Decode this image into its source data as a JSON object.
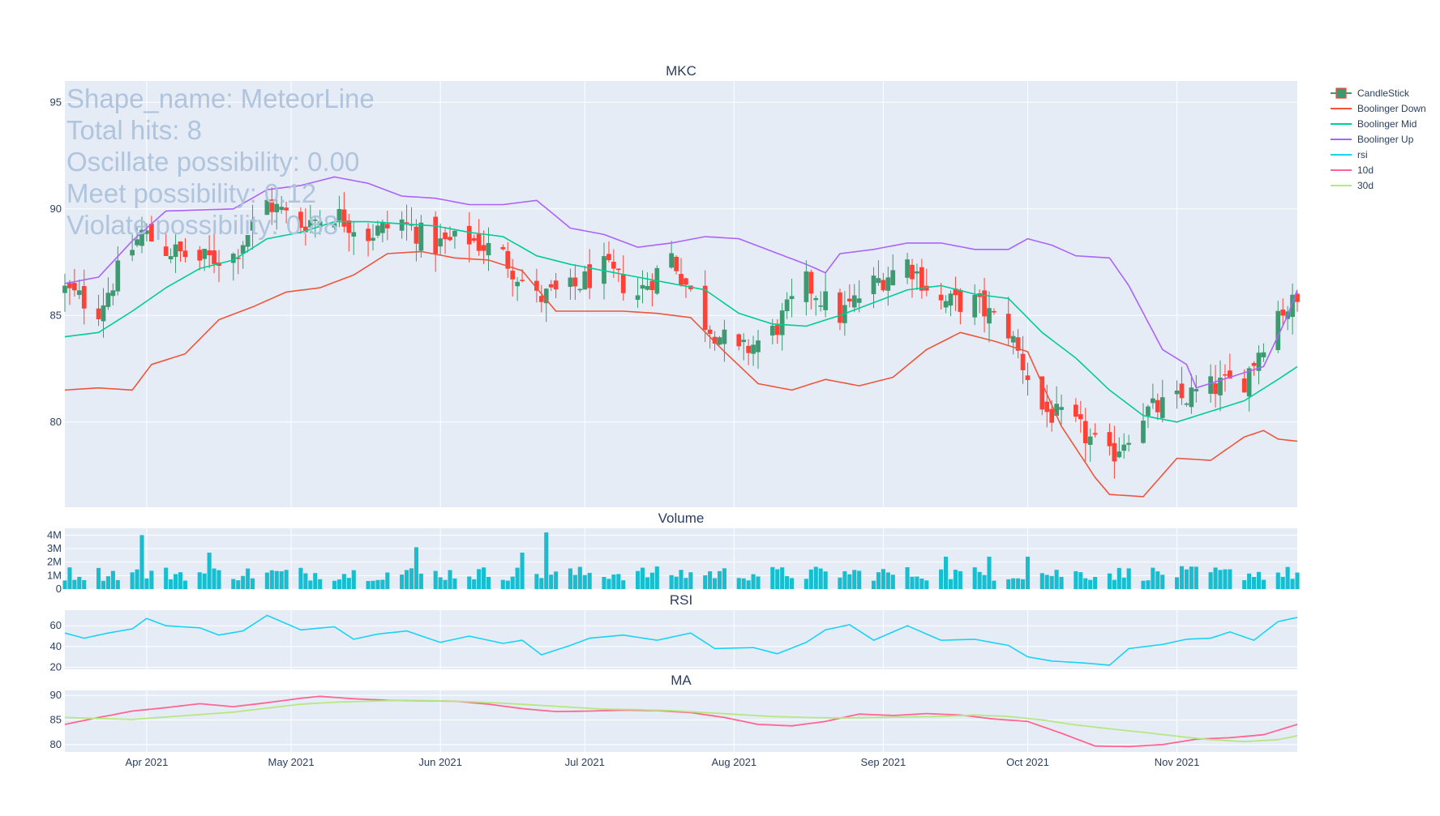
{
  "chart_data": {
    "type": "candlestick",
    "symbol": "MKC",
    "panels": {
      "price": {
        "title": "MKC",
        "ylim": [
          76,
          96
        ],
        "yticks": [
          80,
          85,
          90,
          95
        ]
      },
      "volume": {
        "title": "Volume",
        "ylim": [
          0,
          4500000
        ],
        "yticks": [
          0,
          1000000,
          2000000,
          3000000,
          4000000
        ],
        "ytick_labels": [
          "0",
          "1M",
          "2M",
          "3M",
          "4M"
        ]
      },
      "rsi": {
        "title": "RSI",
        "ylim": [
          18,
          75
        ],
        "yticks": [
          20,
          40,
          60
        ]
      },
      "ma": {
        "title": "MA",
        "ylim": [
          78.5,
          91
        ],
        "yticks": [
          80,
          85,
          90
        ]
      }
    },
    "x_range": [
      "2021-03-15",
      "2021-11-26"
    ],
    "x_ticks": [
      {
        "date": "2021-04-01",
        "label": "Apr 2021"
      },
      {
        "date": "2021-05-01",
        "label": "May 2021"
      },
      {
        "date": "2021-06-01",
        "label": "Jun 2021"
      },
      {
        "date": "2021-07-01",
        "label": "Jul 2021"
      },
      {
        "date": "2021-08-01",
        "label": "Aug 2021"
      },
      {
        "date": "2021-09-01",
        "label": "Sep 2021"
      },
      {
        "date": "2021-10-01",
        "label": "Oct 2021"
      },
      {
        "date": "2021-11-01",
        "label": "Nov 2021"
      }
    ],
    "legend": {
      "placement": "top-right",
      "items": [
        {
          "name": "CandleStick",
          "color": "#3d9970",
          "type": "candle"
        },
        {
          "name": "Boolinger Down",
          "color": "#ef553b",
          "type": "line"
        },
        {
          "name": "Boolinger Mid",
          "color": "#00cc96",
          "type": "line"
        },
        {
          "name": "Boolinger Up",
          "color": "#ab63fa",
          "type": "line"
        },
        {
          "name": "rsi",
          "color": "#19d3f3",
          "type": "line"
        },
        {
          "name": "10d",
          "color": "#ff6692",
          "type": "line"
        },
        {
          "name": "30d",
          "color": "#b6e880",
          "type": "line"
        }
      ]
    },
    "colors": {
      "increasing": "#3d9970",
      "decreasing": "#ff4136",
      "volume": "#17becf",
      "plot_bg": "#e5ecf6",
      "grid": "#ffffff"
    },
    "annotation_lines": [
      "Shape_name: MeteorLine",
      "Total hits: 8",
      "Oscillate possibility: 0.00",
      "Meet possibility: 0.12",
      "Violate possibility: 0.88"
    ],
    "close_anchors": [
      [
        "2021-03-15",
        86.2
      ],
      [
        "2021-03-22",
        85.3
      ],
      [
        "2021-03-26",
        87.0
      ],
      [
        "2021-03-31",
        88.9
      ],
      [
        "2021-04-05",
        88.1
      ],
      [
        "2021-04-12",
        87.6
      ],
      [
        "2021-04-19",
        87.8
      ],
      [
        "2021-04-26",
        90.3
      ],
      [
        "2021-05-03",
        89.3
      ],
      [
        "2021-05-10",
        89.8
      ],
      [
        "2021-05-17",
        88.8
      ],
      [
        "2021-05-24",
        89.4
      ],
      [
        "2021-05-31",
        88.3
      ],
      [
        "2021-06-07",
        88.6
      ],
      [
        "2021-06-14",
        87.8
      ],
      [
        "2021-06-21",
        85.8
      ],
      [
        "2021-06-28",
        86.2
      ],
      [
        "2021-07-05",
        87.2
      ],
      [
        "2021-07-12",
        86.0
      ],
      [
        "2021-07-19",
        87.8
      ],
      [
        "2021-07-26",
        84.7
      ],
      [
        "2021-08-02",
        83.2
      ],
      [
        "2021-08-09",
        84.2
      ],
      [
        "2021-08-16",
        86.5
      ],
      [
        "2021-08-23",
        85.0
      ],
      [
        "2021-08-30",
        86.5
      ],
      [
        "2021-09-06",
        87.5
      ],
      [
        "2021-09-13",
        85.6
      ],
      [
        "2021-09-20",
        85.6
      ],
      [
        "2021-09-27",
        84.3
      ],
      [
        "2021-10-04",
        80.6
      ],
      [
        "2021-10-11",
        79.8
      ],
      [
        "2021-10-18",
        78.3
      ],
      [
        "2021-10-25",
        80.4
      ],
      [
        "2021-11-01",
        81.0
      ],
      [
        "2021-11-08",
        81.6
      ],
      [
        "2021-11-15",
        82.0
      ],
      [
        "2021-11-22",
        85.2
      ],
      [
        "2021-11-26",
        85.6
      ]
    ],
    "bollinger_up": [
      [
        "2021-03-15",
        86.5
      ],
      [
        "2021-03-22",
        86.8
      ],
      [
        "2021-03-29",
        88.5
      ],
      [
        "2021-04-05",
        89.9
      ],
      [
        "2021-04-19",
        90.0
      ],
      [
        "2021-04-26",
        90.9
      ],
      [
        "2021-05-03",
        91.1
      ],
      [
        "2021-05-10",
        91.5
      ],
      [
        "2021-05-17",
        91.2
      ],
      [
        "2021-05-24",
        90.6
      ],
      [
        "2021-05-31",
        90.5
      ],
      [
        "2021-06-07",
        90.2
      ],
      [
        "2021-06-14",
        90.2
      ],
      [
        "2021-06-21",
        90.4
      ],
      [
        "2021-06-28",
        89.1
      ],
      [
        "2021-07-05",
        88.8
      ],
      [
        "2021-07-12",
        88.2
      ],
      [
        "2021-07-19",
        88.4
      ],
      [
        "2021-07-26",
        88.7
      ],
      [
        "2021-08-02",
        88.6
      ],
      [
        "2021-08-09",
        88.0
      ],
      [
        "2021-08-16",
        87.4
      ],
      [
        "2021-08-20",
        87.0
      ],
      [
        "2021-08-23",
        87.9
      ],
      [
        "2021-08-30",
        88.1
      ],
      [
        "2021-09-06",
        88.4
      ],
      [
        "2021-09-13",
        88.4
      ],
      [
        "2021-09-20",
        88.1
      ],
      [
        "2021-09-27",
        88.1
      ],
      [
        "2021-10-01",
        88.6
      ],
      [
        "2021-10-06",
        88.3
      ],
      [
        "2021-10-11",
        87.8
      ],
      [
        "2021-10-18",
        87.7
      ],
      [
        "2021-10-22",
        86.4
      ],
      [
        "2021-10-29",
        83.4
      ],
      [
        "2021-11-03",
        82.7
      ],
      [
        "2021-11-05",
        81.6
      ],
      [
        "2021-11-12",
        82.1
      ],
      [
        "2021-11-19",
        82.6
      ],
      [
        "2021-11-24",
        85.0
      ],
      [
        "2021-11-26",
        86.2
      ]
    ],
    "bollinger_mid": [
      [
        "2021-03-15",
        84.0
      ],
      [
        "2021-03-22",
        84.2
      ],
      [
        "2021-03-29",
        85.2
      ],
      [
        "2021-04-05",
        86.3
      ],
      [
        "2021-04-12",
        87.2
      ],
      [
        "2021-04-19",
        87.6
      ],
      [
        "2021-04-26",
        88.6
      ],
      [
        "2021-05-03",
        88.9
      ],
      [
        "2021-05-10",
        89.4
      ],
      [
        "2021-05-17",
        89.4
      ],
      [
        "2021-05-24",
        89.3
      ],
      [
        "2021-05-31",
        89.2
      ],
      [
        "2021-06-07",
        88.9
      ],
      [
        "2021-06-14",
        88.7
      ],
      [
        "2021-06-21",
        87.8
      ],
      [
        "2021-06-28",
        87.4
      ],
      [
        "2021-07-05",
        87.1
      ],
      [
        "2021-07-12",
        86.8
      ],
      [
        "2021-07-19",
        86.5
      ],
      [
        "2021-07-26",
        86.2
      ],
      [
        "2021-08-02",
        85.1
      ],
      [
        "2021-08-09",
        84.6
      ],
      [
        "2021-08-16",
        84.5
      ],
      [
        "2021-08-23",
        85.0
      ],
      [
        "2021-08-30",
        85.6
      ],
      [
        "2021-09-06",
        86.2
      ],
      [
        "2021-09-13",
        86.4
      ],
      [
        "2021-09-20",
        86.0
      ],
      [
        "2021-09-27",
        85.8
      ],
      [
        "2021-10-04",
        84.2
      ],
      [
        "2021-10-11",
        83.0
      ],
      [
        "2021-10-18",
        81.5
      ],
      [
        "2021-10-25",
        80.3
      ],
      [
        "2021-11-01",
        80.0
      ],
      [
        "2021-11-08",
        80.5
      ],
      [
        "2021-11-15",
        81.0
      ],
      [
        "2021-11-22",
        82.0
      ],
      [
        "2021-11-26",
        82.6
      ]
    ],
    "bollinger_down": [
      [
        "2021-03-15",
        81.5
      ],
      [
        "2021-03-22",
        81.6
      ],
      [
        "2021-03-29",
        81.5
      ],
      [
        "2021-04-02",
        82.7
      ],
      [
        "2021-04-09",
        83.2
      ],
      [
        "2021-04-16",
        84.8
      ],
      [
        "2021-04-23",
        85.4
      ],
      [
        "2021-04-30",
        86.1
      ],
      [
        "2021-05-07",
        86.3
      ],
      [
        "2021-05-14",
        86.9
      ],
      [
        "2021-05-21",
        87.9
      ],
      [
        "2021-05-28",
        88.0
      ],
      [
        "2021-06-04",
        87.7
      ],
      [
        "2021-06-11",
        87.6
      ],
      [
        "2021-06-18",
        87.1
      ],
      [
        "2021-06-25",
        85.2
      ],
      [
        "2021-07-02",
        85.2
      ],
      [
        "2021-07-09",
        85.2
      ],
      [
        "2021-07-16",
        85.1
      ],
      [
        "2021-07-23",
        84.9
      ],
      [
        "2021-07-30",
        83.3
      ],
      [
        "2021-08-06",
        81.8
      ],
      [
        "2021-08-13",
        81.5
      ],
      [
        "2021-08-20",
        82.0
      ],
      [
        "2021-08-27",
        81.7
      ],
      [
        "2021-09-03",
        82.1
      ],
      [
        "2021-09-10",
        83.4
      ],
      [
        "2021-09-17",
        84.2
      ],
      [
        "2021-09-24",
        83.8
      ],
      [
        "2021-10-01",
        83.3
      ],
      [
        "2021-10-08",
        79.8
      ],
      [
        "2021-10-15",
        77.4
      ],
      [
        "2021-10-18",
        76.6
      ],
      [
        "2021-10-25",
        76.5
      ],
      [
        "2021-11-01",
        78.3
      ],
      [
        "2021-11-08",
        78.2
      ],
      [
        "2021-11-15",
        79.3
      ],
      [
        "2021-11-19",
        79.6
      ],
      [
        "2021-11-22",
        79.2
      ],
      [
        "2021-11-26",
        79.1
      ]
    ],
    "rsi": [
      [
        "2021-03-15",
        53
      ],
      [
        "2021-03-19",
        48
      ],
      [
        "2021-03-24",
        53
      ],
      [
        "2021-03-29",
        57
      ],
      [
        "2021-04-01",
        67
      ],
      [
        "2021-04-05",
        60
      ],
      [
        "2021-04-12",
        58
      ],
      [
        "2021-04-16",
        51
      ],
      [
        "2021-04-21",
        55
      ],
      [
        "2021-04-26",
        70
      ],
      [
        "2021-05-03",
        56
      ],
      [
        "2021-05-10",
        59
      ],
      [
        "2021-05-14",
        47
      ],
      [
        "2021-05-19",
        52
      ],
      [
        "2021-05-25",
        55
      ],
      [
        "2021-06-01",
        44
      ],
      [
        "2021-06-07",
        50
      ],
      [
        "2021-06-14",
        43
      ],
      [
        "2021-06-18",
        46
      ],
      [
        "2021-06-22",
        32
      ],
      [
        "2021-06-28",
        41
      ],
      [
        "2021-07-02",
        48
      ],
      [
        "2021-07-09",
        51
      ],
      [
        "2021-07-16",
        46
      ],
      [
        "2021-07-23",
        53
      ],
      [
        "2021-07-28",
        38
      ],
      [
        "2021-08-05",
        39
      ],
      [
        "2021-08-10",
        33
      ],
      [
        "2021-08-16",
        44
      ],
      [
        "2021-08-20",
        56
      ],
      [
        "2021-08-25",
        61
      ],
      [
        "2021-08-30",
        46
      ],
      [
        "2021-09-06",
        60
      ],
      [
        "2021-09-13",
        46
      ],
      [
        "2021-09-20",
        47
      ],
      [
        "2021-09-27",
        41
      ],
      [
        "2021-10-01",
        30
      ],
      [
        "2021-10-06",
        26
      ],
      [
        "2021-10-13",
        24
      ],
      [
        "2021-10-18",
        22
      ],
      [
        "2021-10-22",
        38
      ],
      [
        "2021-10-29",
        42
      ],
      [
        "2021-11-03",
        47
      ],
      [
        "2021-11-08",
        48
      ],
      [
        "2021-11-12",
        54
      ],
      [
        "2021-11-17",
        46
      ],
      [
        "2021-11-22",
        64
      ],
      [
        "2021-11-26",
        68
      ]
    ],
    "ma_10d": [
      [
        "2021-03-15",
        84.1
      ],
      [
        "2021-03-22",
        85.5
      ],
      [
        "2021-03-29",
        86.8
      ],
      [
        "2021-04-05",
        87.5
      ],
      [
        "2021-04-12",
        88.3
      ],
      [
        "2021-04-19",
        87.7
      ],
      [
        "2021-04-26",
        88.5
      ],
      [
        "2021-05-03",
        89.4
      ],
      [
        "2021-05-07",
        89.8
      ],
      [
        "2021-05-14",
        89.3
      ],
      [
        "2021-05-21",
        89.0
      ],
      [
        "2021-05-28",
        88.9
      ],
      [
        "2021-06-04",
        88.8
      ],
      [
        "2021-06-11",
        88.2
      ],
      [
        "2021-06-18",
        87.3
      ],
      [
        "2021-06-25",
        86.7
      ],
      [
        "2021-07-02",
        86.8
      ],
      [
        "2021-07-09",
        87.0
      ],
      [
        "2021-07-16",
        86.9
      ],
      [
        "2021-07-23",
        86.5
      ],
      [
        "2021-07-30",
        85.5
      ],
      [
        "2021-08-06",
        84.1
      ],
      [
        "2021-08-13",
        83.8
      ],
      [
        "2021-08-20",
        84.7
      ],
      [
        "2021-08-27",
        86.2
      ],
      [
        "2021-09-03",
        85.9
      ],
      [
        "2021-09-10",
        86.3
      ],
      [
        "2021-09-17",
        86.0
      ],
      [
        "2021-09-24",
        85.2
      ],
      [
        "2021-10-01",
        84.7
      ],
      [
        "2021-10-08",
        82.3
      ],
      [
        "2021-10-15",
        79.7
      ],
      [
        "2021-10-22",
        79.6
      ],
      [
        "2021-10-29",
        80.0
      ],
      [
        "2021-11-05",
        81.1
      ],
      [
        "2021-11-12",
        81.4
      ],
      [
        "2021-11-19",
        82.0
      ],
      [
        "2021-11-26",
        84.1
      ]
    ],
    "ma_30d": [
      [
        "2021-03-15",
        85.5
      ],
      [
        "2021-03-22",
        85.3
      ],
      [
        "2021-03-29",
        85.1
      ],
      [
        "2021-04-05",
        85.6
      ],
      [
        "2021-04-12",
        86.1
      ],
      [
        "2021-04-19",
        86.6
      ],
      [
        "2021-04-26",
        87.4
      ],
      [
        "2021-05-03",
        88.2
      ],
      [
        "2021-05-10",
        88.6
      ],
      [
        "2021-05-17",
        88.8
      ],
      [
        "2021-05-24",
        89.0
      ],
      [
        "2021-05-31",
        88.9
      ],
      [
        "2021-06-07",
        88.7
      ],
      [
        "2021-06-14",
        88.4
      ],
      [
        "2021-06-21",
        88.0
      ],
      [
        "2021-06-28",
        87.6
      ],
      [
        "2021-07-05",
        87.2
      ],
      [
        "2021-07-12",
        87.1
      ],
      [
        "2021-07-19",
        86.9
      ],
      [
        "2021-07-26",
        86.5
      ],
      [
        "2021-08-02",
        86.1
      ],
      [
        "2021-08-09",
        85.7
      ],
      [
        "2021-08-16",
        85.5
      ],
      [
        "2021-08-23",
        85.4
      ],
      [
        "2021-08-30",
        85.5
      ],
      [
        "2021-09-06",
        85.6
      ],
      [
        "2021-09-13",
        85.7
      ],
      [
        "2021-09-20",
        86.0
      ],
      [
        "2021-09-27",
        85.7
      ],
      [
        "2021-10-04",
        85.0
      ],
      [
        "2021-10-11",
        84.0
      ],
      [
        "2021-10-18",
        83.2
      ],
      [
        "2021-10-25",
        82.5
      ],
      [
        "2021-11-01",
        81.7
      ],
      [
        "2021-11-08",
        81.0
      ],
      [
        "2021-11-15",
        80.6
      ],
      [
        "2021-11-22",
        81.0
      ],
      [
        "2021-11-26",
        81.8
      ]
    ],
    "volume_highlights": [
      [
        "2021-03-31",
        4000000
      ],
      [
        "2021-04-14",
        2700000
      ],
      [
        "2021-05-27",
        3100000
      ],
      [
        "2021-06-23",
        4200000
      ],
      [
        "2021-06-18",
        2700000
      ],
      [
        "2021-09-14",
        2400000
      ],
      [
        "2021-09-23",
        2400000
      ],
      [
        "2021-10-01",
        2400000
      ]
    ]
  }
}
